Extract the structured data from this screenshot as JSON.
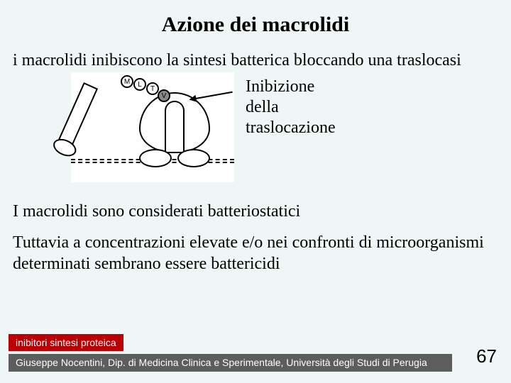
{
  "title": "Azione dei macrolidi",
  "intro": "i macrolidi inibiscono la sintesi batterica bloccando una traslocasi",
  "figure": {
    "caption_line1": "Inibizione",
    "caption_line2": "della",
    "caption_line3": "traslocazione",
    "amino_labels": {
      "m": "M",
      "l": "L",
      "t": "T",
      "v": "V"
    },
    "colors": {
      "figure_bg": "#ffffff",
      "stroke": "#000000",
      "shaded_aa": "#888888"
    }
  },
  "para1": "I macrolidi sono considerati batteriostatici",
  "para2": "Tuttavia a concentrazioni elevate e/o nei confronti di microorganismi determinati sembrano essere battericidi",
  "footer": {
    "tag": "inibitori sintesi proteica",
    "byline": "Giuseppe Nocentini, Dip. di Medicina Clinica e Sperimentale, Università degli Studi di Perugia",
    "tag_bg": "#b90005",
    "byline_bg": "#5d5d5d"
  },
  "page_number": "67",
  "slide_bg": "#eef6f6"
}
